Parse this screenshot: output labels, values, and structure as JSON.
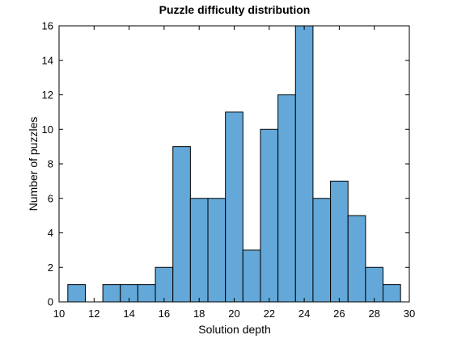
{
  "chart_data": {
    "type": "bar",
    "title": "Puzzle difficulty distribution",
    "xlabel": "Solution depth",
    "ylabel": "Number of puzzles",
    "xlim": [
      10,
      30
    ],
    "ylim": [
      0,
      16
    ],
    "x_ticks": [
      10,
      12,
      14,
      16,
      18,
      20,
      22,
      24,
      26,
      28,
      30
    ],
    "y_ticks": [
      0,
      2,
      4,
      6,
      8,
      10,
      12,
      14,
      16
    ],
    "bin_width": 1,
    "bins": [
      {
        "start": 10.5,
        "count": 1
      },
      {
        "start": 11.5,
        "count": 0
      },
      {
        "start": 12.5,
        "count": 1
      },
      {
        "start": 13.5,
        "count": 1
      },
      {
        "start": 14.5,
        "count": 1
      },
      {
        "start": 15.5,
        "count": 2
      },
      {
        "start": 16.5,
        "count": 9
      },
      {
        "start": 17.5,
        "count": 6
      },
      {
        "start": 18.5,
        "count": 6
      },
      {
        "start": 19.5,
        "count": 11
      },
      {
        "start": 20.5,
        "count": 3
      },
      {
        "start": 21.5,
        "count": 10
      },
      {
        "start": 22.5,
        "count": 12
      },
      {
        "start": 23.5,
        "count": 16
      },
      {
        "start": 24.5,
        "count": 6
      },
      {
        "start": 25.5,
        "count": 7
      },
      {
        "start": 26.5,
        "count": 5
      },
      {
        "start": 27.5,
        "count": 2
      },
      {
        "start": 28.5,
        "count": 1
      }
    ],
    "grid": false,
    "bar_color": "#63a8d8",
    "edge_color": "#000000"
  }
}
